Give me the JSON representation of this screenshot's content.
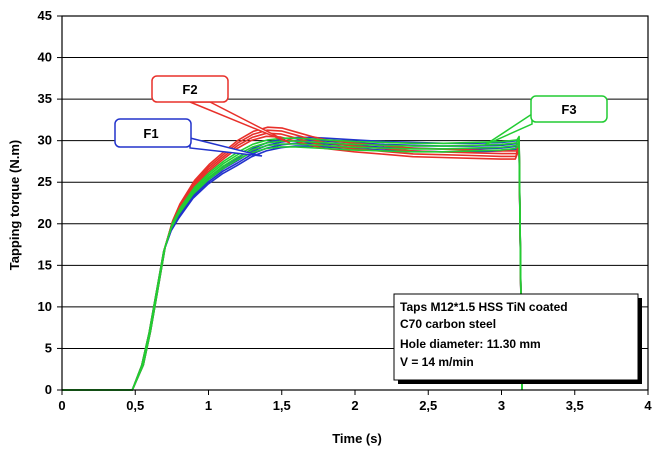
{
  "chart_data": {
    "type": "line",
    "xlabel": "Time (s)",
    "ylabel": "Tapping torque (N.m)",
    "xlim": [
      0,
      4
    ],
    "ylim": [
      0,
      45
    ],
    "x_ticks": [
      0,
      0.5,
      1,
      1.5,
      2,
      2.5,
      3,
      3.5,
      4
    ],
    "x_tick_labels": [
      "0",
      "0,5",
      "1",
      "1,5",
      "2",
      "2,5",
      "3",
      "3,5",
      "4"
    ],
    "y_ticks": [
      0,
      5,
      10,
      15,
      20,
      25,
      30,
      35,
      40,
      45
    ],
    "y_tick_labels": [
      "0",
      "5",
      "10",
      "15",
      "20",
      "25",
      "30",
      "35",
      "40",
      "45"
    ],
    "grid": "horizontal",
    "series": [
      {
        "name": "F1",
        "color": "#2233cc",
        "x": [
          0,
          0.48,
          0.55,
          0.6,
          0.65,
          0.7,
          0.75,
          0.8,
          0.9,
          1.0,
          1.1,
          1.2,
          1.3,
          1.4,
          1.5,
          1.6,
          1.7,
          1.8,
          2.0,
          2.2,
          2.4,
          2.6,
          2.8,
          3.0,
          3.1,
          3.12,
          3.14
        ],
        "values": [
          0,
          0,
          3,
          7,
          12,
          17,
          19.5,
          21,
          23.5,
          25.2,
          26.5,
          27.5,
          28.6,
          29.3,
          29.7,
          29.9,
          29.9,
          29.8,
          29.6,
          29.4,
          29.3,
          29.2,
          29.2,
          29.3,
          29.5,
          29.5,
          0
        ]
      },
      {
        "name": "F2",
        "color": "#e8302a",
        "x": [
          0,
          0.48,
          0.55,
          0.6,
          0.65,
          0.7,
          0.75,
          0.8,
          0.9,
          1.0,
          1.1,
          1.2,
          1.3,
          1.4,
          1.5,
          1.6,
          1.7,
          1.8,
          2.0,
          2.2,
          2.4,
          2.6,
          2.8,
          3.0,
          3.1,
          3.12,
          3.14
        ],
        "values": [
          0,
          0,
          3,
          7,
          12,
          17,
          20,
          22,
          24.8,
          26.7,
          28.2,
          29.6,
          30.6,
          31.1,
          31,
          30.5,
          30,
          29.6,
          29.2,
          28.9,
          28.6,
          28.5,
          28.4,
          28.3,
          28.3,
          29.5,
          0
        ]
      },
      {
        "name": "F3",
        "color": "#22cc33",
        "x": [
          0,
          0.48,
          0.55,
          0.6,
          0.65,
          0.7,
          0.75,
          0.8,
          0.9,
          1.0,
          1.1,
          1.2,
          1.3,
          1.4,
          1.5,
          1.6,
          1.7,
          1.8,
          2.0,
          2.2,
          2.4,
          2.6,
          2.8,
          3.0,
          3.1,
          3.12,
          3.14
        ],
        "values": [
          0,
          0,
          3,
          7,
          12,
          17,
          19.8,
          21.5,
          24,
          25.7,
          27.1,
          28.2,
          29.1,
          29.6,
          29.8,
          29.8,
          29.7,
          29.6,
          29.4,
          29.3,
          29.2,
          29.2,
          29.3,
          29.4,
          29.6,
          30,
          0
        ]
      }
    ],
    "annotations": [
      {
        "label": "F1",
        "series": "F1"
      },
      {
        "label": "F2",
        "series": "F2"
      },
      {
        "label": "F3",
        "series": "F3"
      }
    ],
    "info_box": [
      "Taps M12*1.5 HSS TiN coated",
      "C70 carbon steel",
      "Hole diameter: 11.30 mm",
      "V = 14 m/min"
    ]
  }
}
